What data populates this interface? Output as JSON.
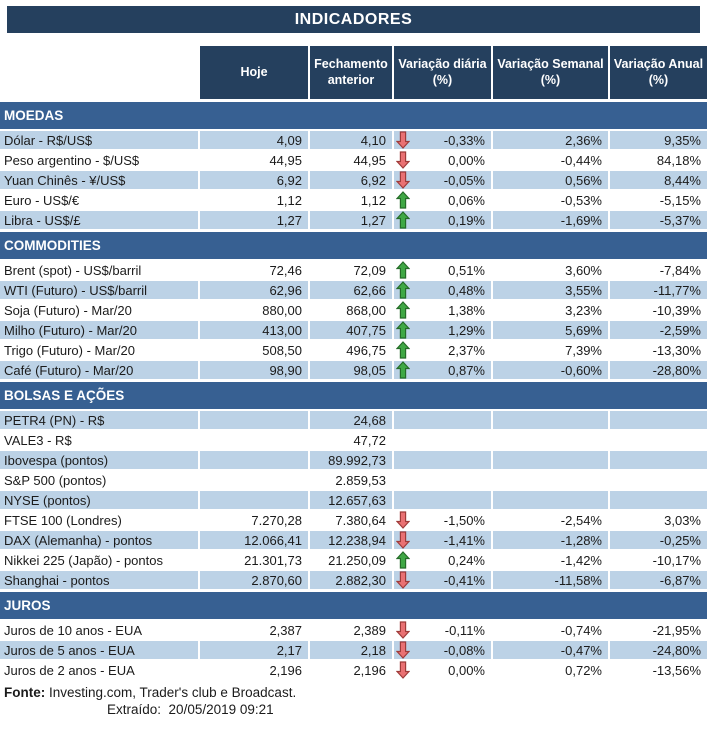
{
  "title": "INDICADORES",
  "columns": [
    "Hoje",
    "Fechamento anterior",
    "Variação diária (%)",
    "Variação Semanal (%)",
    "Variação Anual (%)"
  ],
  "colors": {
    "title_bg": "#25405e",
    "header_bg": "#25405e",
    "section_bg": "#376092",
    "row_shaded": "#bcd2e6",
    "arrow_up_fill": "#3fa845",
    "arrow_up_border": "#256b28",
    "arrow_down_fill": "#e97173",
    "arrow_down_border": "#9e3b39"
  },
  "sections": [
    {
      "title": "MOEDAS",
      "rows": [
        {
          "label": "Dólar - R$/US$",
          "hoje": "4,09",
          "fechamento": "4,10",
          "arrow": "down",
          "var_diaria": "-0,33%",
          "var_semanal": "2,36%",
          "var_anual": "9,35%",
          "shaded": true
        },
        {
          "label": "Peso argentino - $/US$",
          "hoje": "44,95",
          "fechamento": "44,95",
          "arrow": "down",
          "var_diaria": "0,00%",
          "var_semanal": "-0,44%",
          "var_anual": "84,18%",
          "shaded": false
        },
        {
          "label": "Yuan Chinês - ¥/US$",
          "hoje": "6,92",
          "fechamento": "6,92",
          "arrow": "down",
          "var_diaria": "-0,05%",
          "var_semanal": "0,56%",
          "var_anual": "8,44%",
          "shaded": true
        },
        {
          "label": "Euro - US$/€",
          "hoje": "1,12",
          "fechamento": "1,12",
          "arrow": "up",
          "var_diaria": "0,06%",
          "var_semanal": "-0,53%",
          "var_anual": "-5,15%",
          "shaded": false
        },
        {
          "label": "Libra - US$/£",
          "hoje": "1,27",
          "fechamento": "1,27",
          "arrow": "up",
          "var_diaria": "0,19%",
          "var_semanal": "-1,69%",
          "var_anual": "-5,37%",
          "shaded": true
        }
      ]
    },
    {
      "title": "COMMODITIES",
      "rows": [
        {
          "label": "Brent (spot) - US$/barril",
          "hoje": "72,46",
          "fechamento": "72,09",
          "arrow": "up",
          "var_diaria": "0,51%",
          "var_semanal": "3,60%",
          "var_anual": "-7,84%",
          "shaded": false
        },
        {
          "label": "WTI (Futuro) - US$/barril",
          "hoje": "62,96",
          "fechamento": "62,66",
          "arrow": "up",
          "var_diaria": "0,48%",
          "var_semanal": "3,55%",
          "var_anual": "-11,77%",
          "shaded": true
        },
        {
          "label": "Soja (Futuro) - Mar/20",
          "hoje": "880,00",
          "fechamento": "868,00",
          "arrow": "up",
          "var_diaria": "1,38%",
          "var_semanal": "3,23%",
          "var_anual": "-10,39%",
          "shaded": false
        },
        {
          "label": "Milho (Futuro) - Mar/20",
          "hoje": "413,00",
          "fechamento": "407,75",
          "arrow": "up",
          "var_diaria": "1,29%",
          "var_semanal": "5,69%",
          "var_anual": "-2,59%",
          "shaded": true
        },
        {
          "label": "Trigo (Futuro) - Mar/20",
          "hoje": "508,50",
          "fechamento": "496,75",
          "arrow": "up",
          "var_diaria": "2,37%",
          "var_semanal": "7,39%",
          "var_anual": "-13,30%",
          "shaded": false
        },
        {
          "label": "Café (Futuro) - Mar/20",
          "hoje": "98,90",
          "fechamento": "98,05",
          "arrow": "up",
          "var_diaria": "0,87%",
          "var_semanal": "-0,60%",
          "var_anual": "-28,80%",
          "shaded": true
        }
      ]
    },
    {
      "title": "BOLSAS E AÇÕES",
      "rows": [
        {
          "label": "PETR4 (PN) - R$",
          "hoje": "",
          "fechamento": "24,68",
          "arrow": null,
          "var_diaria": "",
          "var_semanal": "",
          "var_anual": "",
          "shaded": true
        },
        {
          "label": "VALE3 - R$",
          "hoje": "",
          "fechamento": "47,72",
          "arrow": null,
          "var_diaria": "",
          "var_semanal": "",
          "var_anual": "",
          "shaded": false
        },
        {
          "label": "Ibovespa (pontos)",
          "hoje": "",
          "fechamento": "89.992,73",
          "arrow": null,
          "var_diaria": "",
          "var_semanal": "",
          "var_anual": "",
          "shaded": true
        },
        {
          "label": "S&P 500 (pontos)",
          "hoje": "",
          "fechamento": "2.859,53",
          "arrow": null,
          "var_diaria": "",
          "var_semanal": "",
          "var_anual": "",
          "shaded": false
        },
        {
          "label": "NYSE (pontos)",
          "hoje": "",
          "fechamento": "12.657,63",
          "arrow": null,
          "var_diaria": "",
          "var_semanal": "",
          "var_anual": "",
          "shaded": true
        },
        {
          "label": "FTSE 100 (Londres)",
          "hoje": "7.270,28",
          "fechamento": "7.380,64",
          "arrow": "down",
          "var_diaria": "-1,50%",
          "var_semanal": "-2,54%",
          "var_anual": "3,03%",
          "shaded": false
        },
        {
          "label": "DAX (Alemanha) - pontos",
          "hoje": "12.066,41",
          "fechamento": "12.238,94",
          "arrow": "down",
          "var_diaria": "-1,41%",
          "var_semanal": "-1,28%",
          "var_anual": "-0,25%",
          "shaded": true
        },
        {
          "label": "Nikkei 225 (Japão) - pontos",
          "hoje": "21.301,73",
          "fechamento": "21.250,09",
          "arrow": "up",
          "var_diaria": "0,24%",
          "var_semanal": "-1,42%",
          "var_anual": "-10,17%",
          "shaded": false
        },
        {
          "label": "Shanghai - pontos",
          "hoje": "2.870,60",
          "fechamento": "2.882,30",
          "arrow": "down",
          "var_diaria": "-0,41%",
          "var_semanal": "-11,58%",
          "var_anual": "-6,87%",
          "shaded": true
        }
      ]
    },
    {
      "title": "JUROS",
      "rows": [
        {
          "label": "Juros de 10 anos - EUA",
          "hoje": "2,387",
          "fechamento": "2,389",
          "arrow": "down",
          "var_diaria": "-0,11%",
          "var_semanal": "-0,74%",
          "var_anual": "-21,95%",
          "shaded": false
        },
        {
          "label": "Juros de 5 anos - EUA",
          "hoje": "2,17",
          "fechamento": "2,18",
          "arrow": "down",
          "var_diaria": "-0,08%",
          "var_semanal": "-0,47%",
          "var_anual": "-24,80%",
          "shaded": true
        },
        {
          "label": "Juros de 2 anos - EUA",
          "hoje": "2,196",
          "fechamento": "2,196",
          "arrow": "down",
          "var_diaria": "0,00%",
          "var_semanal": "0,72%",
          "var_anual": "-13,56%",
          "shaded": false
        }
      ]
    }
  ],
  "footer": {
    "fonte_label": "Fonte:",
    "fonte_text": " Investing.com, Trader's club e Broadcast.",
    "extraido_label": "Extraído:",
    "extraido_value": "20/05/2019 09:21"
  }
}
